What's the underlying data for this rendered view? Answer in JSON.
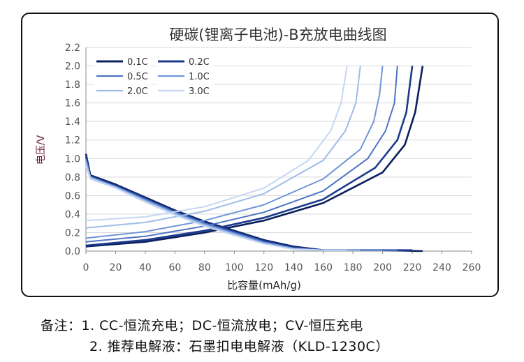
{
  "chart_data": {
    "type": "line",
    "title": "硬碳(锂离子电池)-B充放电曲线图",
    "xlabel": "比容量(mAh/g)",
    "ylabel": "电压/V",
    "xlim": [
      0,
      260
    ],
    "ylim": [
      0,
      2.2
    ],
    "xticks": [
      "0",
      "20",
      "40",
      "60",
      "80",
      "100",
      "120",
      "140",
      "160",
      "180",
      "200",
      "220",
      "240",
      "260"
    ],
    "yticks": [
      "0.0",
      "0.2",
      "0.4",
      "0.6",
      "0.8",
      "1.0",
      "1.2",
      "1.4",
      "1.6",
      "1.8",
      "2.0",
      "2.2"
    ],
    "grid": "horizontal",
    "legend_position": "top-left",
    "series": [
      {
        "name": "0.1C",
        "color": "#0b1f5c",
        "charge": [
          [
            0,
            0.05
          ],
          [
            40,
            0.1
          ],
          [
            80,
            0.2
          ],
          [
            120,
            0.33
          ],
          [
            160,
            0.52
          ],
          [
            200,
            0.85
          ],
          [
            215,
            1.15
          ],
          [
            222,
            1.5
          ],
          [
            227,
            2.0
          ]
        ],
        "discharge": [
          [
            0,
            1.05
          ],
          [
            3,
            0.82
          ],
          [
            20,
            0.72
          ],
          [
            40,
            0.58
          ],
          [
            60,
            0.44
          ],
          [
            80,
            0.32
          ],
          [
            100,
            0.22
          ],
          [
            120,
            0.12
          ],
          [
            140,
            0.05
          ],
          [
            160,
            0.01
          ],
          [
            200,
            0.01
          ],
          [
            227,
            0.0
          ]
        ]
      },
      {
        "name": "0.2C",
        "color": "#1a3a8c",
        "charge": [
          [
            0,
            0.06
          ],
          [
            40,
            0.12
          ],
          [
            80,
            0.22
          ],
          [
            120,
            0.36
          ],
          [
            160,
            0.56
          ],
          [
            195,
            0.9
          ],
          [
            210,
            1.2
          ],
          [
            216,
            1.5
          ],
          [
            220,
            2.0
          ]
        ],
        "discharge": [
          [
            0,
            1.02
          ],
          [
            3,
            0.81
          ],
          [
            20,
            0.71
          ],
          [
            40,
            0.57
          ],
          [
            60,
            0.43
          ],
          [
            80,
            0.31
          ],
          [
            100,
            0.21
          ],
          [
            120,
            0.11
          ],
          [
            140,
            0.04
          ],
          [
            160,
            0.01
          ],
          [
            220,
            0.01
          ]
        ]
      },
      {
        "name": "0.5C",
        "color": "#4d74c4",
        "charge": [
          [
            0,
            0.1
          ],
          [
            40,
            0.16
          ],
          [
            80,
            0.27
          ],
          [
            120,
            0.42
          ],
          [
            160,
            0.65
          ],
          [
            190,
            1.0
          ],
          [
            202,
            1.3
          ],
          [
            208,
            1.6
          ],
          [
            210,
            2.0
          ]
        ],
        "discharge": [
          [
            0,
            1.0
          ],
          [
            3,
            0.8
          ],
          [
            20,
            0.7
          ],
          [
            40,
            0.56
          ],
          [
            60,
            0.42
          ],
          [
            80,
            0.3
          ],
          [
            100,
            0.2
          ],
          [
            120,
            0.1
          ],
          [
            140,
            0.03
          ],
          [
            160,
            0.01
          ],
          [
            210,
            0.01
          ]
        ]
      },
      {
        "name": "1.0C",
        "color": "#6f95d8",
        "charge": [
          [
            0,
            0.14
          ],
          [
            40,
            0.21
          ],
          [
            80,
            0.33
          ],
          [
            120,
            0.5
          ],
          [
            160,
            0.78
          ],
          [
            185,
            1.1
          ],
          [
            194,
            1.4
          ],
          [
            198,
            1.7
          ],
          [
            200,
            2.0
          ]
        ],
        "discharge": [
          [
            0,
            0.98
          ],
          [
            3,
            0.8
          ],
          [
            20,
            0.69
          ],
          [
            40,
            0.55
          ],
          [
            60,
            0.41
          ],
          [
            80,
            0.29
          ],
          [
            100,
            0.19
          ],
          [
            120,
            0.09
          ],
          [
            140,
            0.03
          ],
          [
            160,
            0.01
          ],
          [
            200,
            0.01
          ]
        ]
      },
      {
        "name": "2.0C",
        "color": "#9fbbe8",
        "charge": [
          [
            0,
            0.25
          ],
          [
            40,
            0.31
          ],
          [
            80,
            0.43
          ],
          [
            120,
            0.62
          ],
          [
            160,
            0.98
          ],
          [
            175,
            1.3
          ],
          [
            182,
            1.6
          ],
          [
            185,
            2.0
          ]
        ],
        "discharge": [
          [
            0,
            0.95
          ],
          [
            3,
            0.79
          ],
          [
            20,
            0.69
          ],
          [
            40,
            0.54
          ],
          [
            60,
            0.4
          ],
          [
            80,
            0.28
          ],
          [
            100,
            0.18
          ],
          [
            120,
            0.08
          ],
          [
            140,
            0.02
          ],
          [
            160,
            0.01
          ],
          [
            185,
            0.01
          ]
        ]
      },
      {
        "name": "3.0C",
        "color": "#c6d6f2",
        "charge": [
          [
            0,
            0.33
          ],
          [
            40,
            0.37
          ],
          [
            80,
            0.48
          ],
          [
            120,
            0.68
          ],
          [
            150,
            0.98
          ],
          [
            165,
            1.3
          ],
          [
            172,
            1.6
          ],
          [
            176,
            2.0
          ]
        ],
        "discharge": [
          [
            0,
            0.92
          ],
          [
            3,
            0.78
          ],
          [
            20,
            0.68
          ],
          [
            40,
            0.53
          ],
          [
            60,
            0.39
          ],
          [
            80,
            0.27
          ],
          [
            100,
            0.17
          ],
          [
            120,
            0.08
          ],
          [
            140,
            0.02
          ],
          [
            160,
            0.01
          ],
          [
            176,
            0.01
          ]
        ]
      }
    ]
  },
  "notes": {
    "line1": "备注：1. CC-恒流充电；DC-恒流放电；CV-恒压充电",
    "line2": "2. 推荐电解液：石墨扣电电解液（KLD-1230C）"
  }
}
